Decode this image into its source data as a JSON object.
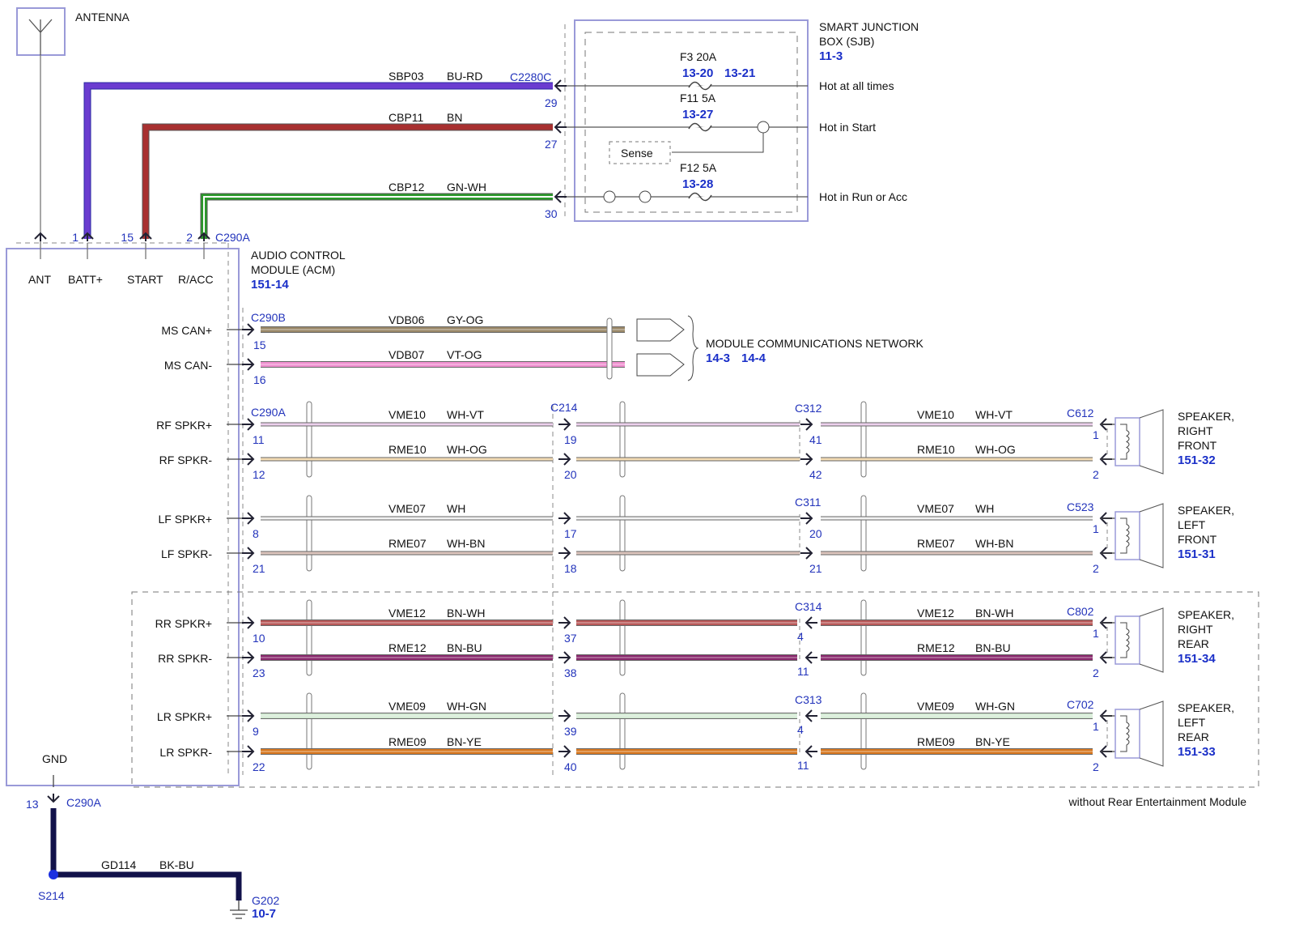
{
  "antenna": {
    "label": "ANTENNA"
  },
  "sjb": {
    "title_lines": [
      "SMART JUNCTION",
      "BOX (SJB)"
    ],
    "ref": "11-3",
    "connector": "C2280C",
    "sense": "Sense",
    "fuses": [
      {
        "name": "F3  20A",
        "refs": [
          "13-20",
          "13-21"
        ],
        "feed": "Hot at all times"
      },
      {
        "name": "F11  5A",
        "refs": [
          "13-27"
        ],
        "feed": "Hot in Start"
      },
      {
        "name": "F12  5A",
        "refs": [
          "13-28"
        ],
        "feed": "Hot in Run or Acc"
      }
    ]
  },
  "power_wires": [
    {
      "circuit": "SBP03",
      "color": "BU-RD",
      "sjb_pin": "29",
      "acm_pin": "1",
      "hex": "#6a3cd0"
    },
    {
      "circuit": "CBP11",
      "color": "BN",
      "sjb_pin": "27",
      "acm_pin": "15",
      "hex": "#a83030"
    },
    {
      "circuit": "CBP12",
      "color": "GN-WH",
      "sjb_pin": "30",
      "acm_pin": "2",
      "hex": "#2a9a2a"
    }
  ],
  "acm": {
    "title_lines": [
      "AUDIO CONTROL",
      "MODULE (ACM)"
    ],
    "ref": "151-14",
    "top_connector": "C290A",
    "pins_top": [
      "ANT",
      "BATT+",
      "START",
      "R/ACC"
    ],
    "gnd": "GND"
  },
  "can": {
    "connector": "C290B",
    "network": "MODULE COMMUNICATIONS NETWORK",
    "refs": [
      "14-3",
      "14-4"
    ],
    "wires": [
      {
        "label": "MS CAN+",
        "circuit": "VDB06",
        "color": "GY-OG",
        "pin": "15",
        "hex": "#9a8868"
      },
      {
        "label": "MS CAN-",
        "circuit": "VDB07",
        "color": "VT-OG",
        "pin": "16",
        "hex": "#f090d0"
      }
    ]
  },
  "speakers": [
    {
      "name_lines": [
        "SPEAKER,",
        "RIGHT",
        "FRONT"
      ],
      "ref": "151-32",
      "acm_connector": "C290A",
      "mid_connector": "C214",
      "inline_connector": "C312",
      "speaker_connector": "C612",
      "wires": [
        {
          "label": "RF SPKR+",
          "circuit": "VME10",
          "color": "WH-VT",
          "pins": [
            "11",
            "19",
            "41",
            "1"
          ],
          "hex": "#ecd0ec"
        },
        {
          "label": "RF SPKR-",
          "circuit": "RME10",
          "color": "WH-OG",
          "pins": [
            "12",
            "20",
            "42",
            "2"
          ],
          "hex": "#f4dcb4"
        }
      ]
    },
    {
      "name_lines": [
        "SPEAKER,",
        "LEFT",
        "FRONT"
      ],
      "ref": "151-31",
      "acm_connector": "",
      "mid_connector": "",
      "inline_connector": "C311",
      "speaker_connector": "C523",
      "wires": [
        {
          "label": "LF SPKR+",
          "circuit": "VME07",
          "color": "WH",
          "pins": [
            "8",
            "17",
            "20",
            "1"
          ],
          "hex": "#f2f2f2"
        },
        {
          "label": "LF SPKR-",
          "circuit": "RME07",
          "color": "WH-BN",
          "pins": [
            "21",
            "18",
            "21",
            "2"
          ],
          "hex": "#dcc4bc"
        }
      ]
    },
    {
      "name_lines": [
        "SPEAKER,",
        "RIGHT",
        "REAR"
      ],
      "ref": "151-34",
      "acm_connector": "",
      "mid_connector": "",
      "inline_connector": "C314",
      "speaker_connector": "C802",
      "wires": [
        {
          "label": "RR SPKR+",
          "circuit": "VME12",
          "color": "BN-WH",
          "pins": [
            "10",
            "37",
            "4",
            "1"
          ],
          "hex": "#b85858"
        },
        {
          "label": "RR SPKR-",
          "circuit": "RME12",
          "color": "BN-BU",
          "pins": [
            "23",
            "38",
            "11",
            "2"
          ],
          "hex": "#8a2a6e"
        }
      ]
    },
    {
      "name_lines": [
        "SPEAKER,",
        "LEFT",
        "REAR"
      ],
      "ref": "151-33",
      "acm_connector": "",
      "mid_connector": "",
      "inline_connector": "C313",
      "speaker_connector": "C702",
      "wires": [
        {
          "label": "LR SPKR+",
          "circuit": "VME09",
          "color": "WH-GN",
          "pins": [
            "9",
            "39",
            "4",
            "1"
          ],
          "hex": "#d4ead4"
        },
        {
          "label": "LR SPKR-",
          "circuit": "RME09",
          "color": "BN-YE",
          "pins": [
            "22",
            "40",
            "11",
            "2"
          ],
          "hex": "#d87820"
        }
      ]
    }
  ],
  "rear_note": "without Rear Entertainment Module",
  "ground": {
    "pin": "13",
    "connector": "C290A",
    "circuit": "GD114",
    "color": "BK-BU",
    "splice": "S214",
    "ground_point": "G202",
    "ref": "10-7",
    "hex": "#12124a"
  },
  "colors": {
    "module_outline": "#9a9ad8",
    "connector_text": "#2233bb",
    "ref_text": "#1a2fc8"
  }
}
